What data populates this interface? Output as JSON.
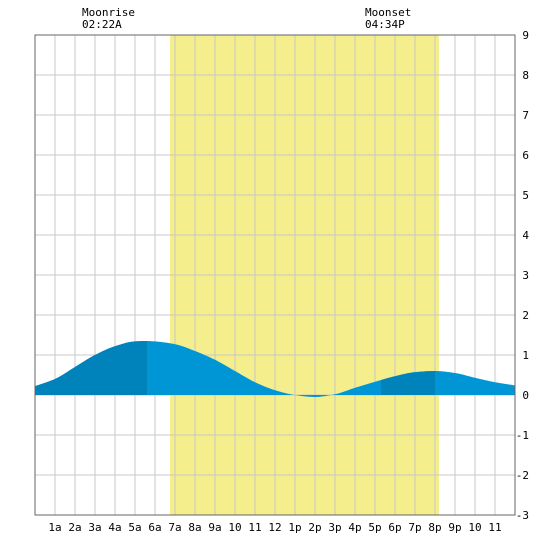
{
  "chart_data": {
    "type": "area",
    "title": "",
    "xlabel": "",
    "ylabel": "",
    "xlim": [
      0,
      24
    ],
    "ylim": [
      -3,
      9
    ],
    "y_ticks": [
      -3,
      -2,
      -1,
      0,
      1,
      2,
      3,
      4,
      5,
      6,
      7,
      8,
      9
    ],
    "x_tick_labels": [
      "1a",
      "2a",
      "3a",
      "4a",
      "5a",
      "6a",
      "7a",
      "8a",
      "9a",
      "10",
      "11",
      "12",
      "1p",
      "2p",
      "3p",
      "4p",
      "5p",
      "6p",
      "7p",
      "8p",
      "9p",
      "10",
      "11"
    ],
    "grid": true,
    "daylight": {
      "start": 6.75,
      "end": 20.2
    },
    "moon_events": [
      {
        "label": "Moonrise",
        "time": "02:22A",
        "hour": 2.37
      },
      {
        "label": "Moonset",
        "time": "04:34P",
        "hour": 16.57
      }
    ],
    "tide_extremes": [
      {
        "hour": 5.6,
        "height": 1.35,
        "kind": "high"
      },
      {
        "hour": 14.1,
        "height": -0.05,
        "kind": "low"
      },
      {
        "hour": 20.0,
        "height": 0.6,
        "kind": "high"
      }
    ],
    "series": [
      {
        "values": [
          [
            0,
            0.22
          ],
          [
            1,
            0.4
          ],
          [
            2,
            0.7
          ],
          [
            3,
            1.0
          ],
          [
            4,
            1.22
          ],
          [
            5,
            1.34
          ],
          [
            5.6,
            1.35
          ],
          [
            6,
            1.34
          ],
          [
            7,
            1.27
          ],
          [
            8,
            1.1
          ],
          [
            9,
            0.88
          ],
          [
            10,
            0.6
          ],
          [
            11,
            0.32
          ],
          [
            12,
            0.12
          ],
          [
            13,
            0.0
          ],
          [
            14,
            -0.05
          ],
          [
            15,
            0.02
          ],
          [
            16,
            0.18
          ],
          [
            17,
            0.33
          ],
          [
            18,
            0.47
          ],
          [
            19,
            0.57
          ],
          [
            20,
            0.6
          ],
          [
            21,
            0.55
          ],
          [
            22,
            0.43
          ],
          [
            23,
            0.32
          ],
          [
            24,
            0.24
          ]
        ]
      }
    ],
    "colors": {
      "daylight": "#f4ee8d",
      "tide_fill": "#0096d6",
      "tide_shade": "#0082bb",
      "grid": "#c8c8c8",
      "border": "#666666"
    }
  },
  "moonrise": {
    "label": "Moonrise",
    "time": "02:22A"
  },
  "moonset": {
    "label": "Moonset",
    "time": "04:34P"
  }
}
